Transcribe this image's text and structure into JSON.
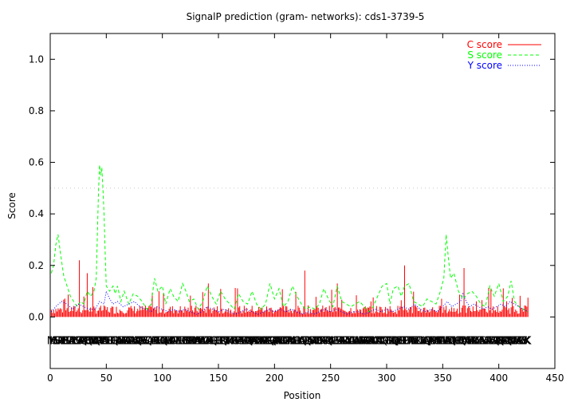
{
  "chart_data": {
    "type": "line",
    "title": "SignalP prediction (gram- networks): cds1-3739-5",
    "xlabel": "Position",
    "ylabel": "Score",
    "xlim": [
      0,
      450
    ],
    "ylim": [
      -0.2,
      1.1
    ],
    "x_ticks": [
      "0",
      "50",
      "100",
      "150",
      "200",
      "250",
      "300",
      "350",
      "400",
      "450"
    ],
    "y_ticks": [
      "0.0",
      "0.2",
      "0.4",
      "0.6",
      "0.8",
      "1.0"
    ],
    "x_tick_values": [
      0,
      50,
      100,
      150,
      200,
      250,
      300,
      350,
      400,
      450
    ],
    "y_tick_values": [
      0.0,
      0.2,
      0.4,
      0.6,
      0.8,
      1.0
    ],
    "threshold": 0.5,
    "sequence_length": 426,
    "sequence_text": "MKHSLSSIAHLLPLSLLTAALLLSSCAPAQKTHSQSAMTDAQRPTVVADSLLSETETQRLAALRAEAKAPLRAWLASAQGERSVESLQAILAKPSLFEHAGQALVHYDPADPTLRLLRTCPSKDHRDDLLAAVKEAKVDGFPALLQRLIEGELRQMYTAMHATRRSFPASETEWFAHQLPAAATAWSALSAEALREQVQAFAAARPLDLPCPARNLALLGRLLAAQLDPQLASRAWAEDEGMRHCFARQLALLGELSEALAHRDAYLTAGLLAWNHADAKAKAEAAAKLAIWAAIAGQRMTSHLNTQQLAVELGRLPFDTAKAEKELRCDILAVAQQVLANRPHASRLEANLLAAREAQIKLHPFLIQLAMAATHAAERYLNEALSMVASAATLASAQLKRQVFELARQENKLTAVRASLGVSVKKK",
    "series": [
      {
        "name": "C score",
        "color": "#ff0000",
        "style": "impulses",
        "peaks": [
          [
            26,
            0.22
          ],
          [
            33,
            0.17
          ],
          [
            141,
            0.13
          ],
          [
            227,
            0.18
          ],
          [
            256,
            0.13
          ],
          [
            316,
            0.2
          ],
          [
            369,
            0.19
          ],
          [
            393,
            0.11
          ]
        ],
        "baseline": 0.03
      },
      {
        "name": "S score",
        "color": "#00ff00",
        "style": "dashed",
        "points": [
          [
            1,
            0.17
          ],
          [
            3,
            0.2
          ],
          [
            5,
            0.28
          ],
          [
            7,
            0.32
          ],
          [
            9,
            0.25
          ],
          [
            12,
            0.16
          ],
          [
            15,
            0.12
          ],
          [
            18,
            0.08
          ],
          [
            21,
            0.06
          ],
          [
            24,
            0.04
          ],
          [
            27,
            0.06
          ],
          [
            30,
            0.05
          ],
          [
            33,
            0.1
          ],
          [
            36,
            0.08
          ],
          [
            39,
            0.1
          ],
          [
            41,
            0.15
          ],
          [
            43,
            0.48
          ],
          [
            44,
            0.59
          ],
          [
            45,
            0.55
          ],
          [
            46,
            0.58
          ],
          [
            47,
            0.5
          ],
          [
            48,
            0.4
          ],
          [
            49,
            0.25
          ],
          [
            50,
            0.12
          ],
          [
            53,
            0.1
          ],
          [
            56,
            0.12
          ],
          [
            58,
            0.09
          ],
          [
            60,
            0.12
          ],
          [
            63,
            0.06
          ],
          [
            66,
            0.1
          ],
          [
            70,
            0.05
          ],
          [
            74,
            0.09
          ],
          [
            78,
            0.08
          ],
          [
            82,
            0.06
          ],
          [
            86,
            0.03
          ],
          [
            90,
            0.05
          ],
          [
            93,
            0.15
          ],
          [
            96,
            0.1
          ],
          [
            100,
            0.12
          ],
          [
            103,
            0.05
          ],
          [
            107,
            0.11
          ],
          [
            110,
            0.08
          ],
          [
            114,
            0.06
          ],
          [
            118,
            0.13
          ],
          [
            121,
            0.1
          ],
          [
            124,
            0.06
          ],
          [
            128,
            0.07
          ],
          [
            132,
            0.03
          ],
          [
            136,
            0.06
          ],
          [
            140,
            0.12
          ],
          [
            144,
            0.08
          ],
          [
            148,
            0.05
          ],
          [
            152,
            0.1
          ],
          [
            156,
            0.07
          ],
          [
            160,
            0.05
          ],
          [
            164,
            0.03
          ],
          [
            168,
            0.09
          ],
          [
            172,
            0.06
          ],
          [
            176,
            0.05
          ],
          [
            180,
            0.1
          ],
          [
            184,
            0.05
          ],
          [
            188,
            0.03
          ],
          [
            192,
            0.05
          ],
          [
            196,
            0.13
          ],
          [
            200,
            0.07
          ],
          [
            204,
            0.11
          ],
          [
            208,
            0.04
          ],
          [
            212,
            0.06
          ],
          [
            216,
            0.12
          ],
          [
            220,
            0.08
          ],
          [
            224,
            0.05
          ],
          [
            228,
            0.03
          ],
          [
            232,
            0.04
          ],
          [
            236,
            0.03
          ],
          [
            240,
            0.05
          ],
          [
            244,
            0.11
          ],
          [
            248,
            0.07
          ],
          [
            252,
            0.04
          ],
          [
            256,
            0.12
          ],
          [
            260,
            0.06
          ],
          [
            264,
            0.05
          ],
          [
            268,
            0.04
          ],
          [
            272,
            0.05
          ],
          [
            276,
            0.06
          ],
          [
            280,
            0.04
          ],
          [
            284,
            0.02
          ],
          [
            288,
            0.04
          ],
          [
            292,
            0.08
          ],
          [
            296,
            0.12
          ],
          [
            300,
            0.13
          ],
          [
            303,
            0.05
          ],
          [
            306,
            0.11
          ],
          [
            310,
            0.12
          ],
          [
            313,
            0.08
          ],
          [
            316,
            0.12
          ],
          [
            320,
            0.13
          ],
          [
            324,
            0.06
          ],
          [
            328,
            0.05
          ],
          [
            332,
            0.04
          ],
          [
            336,
            0.07
          ],
          [
            340,
            0.06
          ],
          [
            344,
            0.05
          ],
          [
            348,
            0.1
          ],
          [
            351,
            0.15
          ],
          [
            353,
            0.32
          ],
          [
            355,
            0.23
          ],
          [
            357,
            0.15
          ],
          [
            360,
            0.17
          ],
          [
            364,
            0.1
          ],
          [
            368,
            0.07
          ],
          [
            372,
            0.09
          ],
          [
            376,
            0.1
          ],
          [
            380,
            0.08
          ],
          [
            384,
            0.05
          ],
          [
            388,
            0.04
          ],
          [
            392,
            0.12
          ],
          [
            396,
            0.08
          ],
          [
            400,
            0.13
          ],
          [
            404,
            0.06
          ],
          [
            408,
            0.08
          ],
          [
            411,
            0.14
          ],
          [
            414,
            0.06
          ],
          [
            418,
            0.04
          ],
          [
            422,
            0.03
          ],
          [
            426,
            0.02
          ]
        ]
      },
      {
        "name": "Y score",
        "color": "#0000ff",
        "style": "dotted",
        "points": [
          [
            1,
            0.02
          ],
          [
            5,
            0.04
          ],
          [
            10,
            0.06
          ],
          [
            15,
            0.05
          ],
          [
            20,
            0.03
          ],
          [
            25,
            0.05
          ],
          [
            30,
            0.04
          ],
          [
            35,
            0.03
          ],
          [
            40,
            0.03
          ],
          [
            44,
            0.06
          ],
          [
            48,
            0.05
          ],
          [
            50,
            0.1
          ],
          [
            53,
            0.07
          ],
          [
            56,
            0.05
          ],
          [
            60,
            0.06
          ],
          [
            65,
            0.04
          ],
          [
            70,
            0.05
          ],
          [
            75,
            0.06
          ],
          [
            80,
            0.04
          ],
          [
            85,
            0.03
          ],
          [
            90,
            0.02
          ],
          [
            95,
            0.04
          ],
          [
            100,
            0.03
          ],
          [
            105,
            0.02
          ],
          [
            110,
            0.03
          ],
          [
            115,
            0.02
          ],
          [
            120,
            0.03
          ],
          [
            125,
            0.02
          ],
          [
            130,
            0.01
          ],
          [
            135,
            0.02
          ],
          [
            140,
            0.04
          ],
          [
            145,
            0.03
          ],
          [
            150,
            0.02
          ],
          [
            155,
            0.03
          ],
          [
            160,
            0.02
          ],
          [
            165,
            0.01
          ],
          [
            170,
            0.02
          ],
          [
            175,
            0.03
          ],
          [
            180,
            0.02
          ],
          [
            185,
            0.01
          ],
          [
            190,
            0.02
          ],
          [
            195,
            0.03
          ],
          [
            200,
            0.02
          ],
          [
            205,
            0.03
          ],
          [
            210,
            0.02
          ],
          [
            215,
            0.03
          ],
          [
            220,
            0.02
          ],
          [
            225,
            0.01
          ],
          [
            230,
            0.02
          ],
          [
            235,
            0.01
          ],
          [
            240,
            0.02
          ],
          [
            245,
            0.03
          ],
          [
            250,
            0.02
          ],
          [
            255,
            0.03
          ],
          [
            260,
            0.02
          ],
          [
            265,
            0.01
          ],
          [
            270,
            0.02
          ],
          [
            275,
            0.02
          ],
          [
            280,
            0.01
          ],
          [
            285,
            0.02
          ],
          [
            290,
            0.03
          ],
          [
            295,
            0.02
          ],
          [
            300,
            0.03
          ],
          [
            305,
            0.02
          ],
          [
            310,
            0.03
          ],
          [
            315,
            0.04
          ],
          [
            320,
            0.03
          ],
          [
            325,
            0.05
          ],
          [
            330,
            0.03
          ],
          [
            335,
            0.02
          ],
          [
            340,
            0.03
          ],
          [
            345,
            0.02
          ],
          [
            350,
            0.04
          ],
          [
            354,
            0.06
          ],
          [
            358,
            0.04
          ],
          [
            362,
            0.05
          ],
          [
            366,
            0.06
          ],
          [
            368,
            0.09
          ],
          [
            371,
            0.06
          ],
          [
            374,
            0.04
          ],
          [
            378,
            0.05
          ],
          [
            382,
            0.04
          ],
          [
            386,
            0.03
          ],
          [
            390,
            0.04
          ],
          [
            394,
            0.03
          ],
          [
            398,
            0.04
          ],
          [
            402,
            0.05
          ],
          [
            406,
            0.04
          ],
          [
            410,
            0.06
          ],
          [
            414,
            0.05
          ],
          [
            418,
            0.04
          ],
          [
            422,
            0.03
          ],
          [
            426,
            0.02
          ]
        ]
      }
    ],
    "legend_position": "top-right",
    "grid": false
  }
}
